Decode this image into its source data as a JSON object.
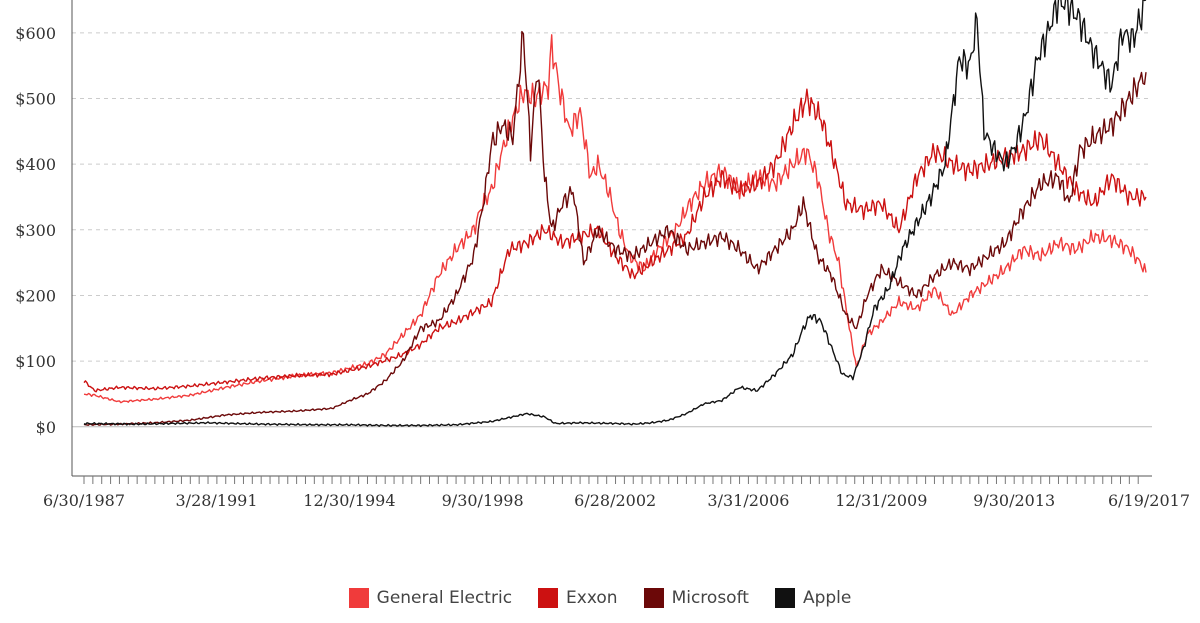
{
  "chart_data": {
    "type": "line",
    "title": "",
    "xlabel": "",
    "ylabel": "",
    "ylim": [
      -75,
      650
    ],
    "y_ticks": [
      0,
      100,
      200,
      300,
      400,
      500,
      600
    ],
    "y_tick_labels": [
      "$0",
      "$100",
      "$200",
      "$300",
      "$400",
      "$500",
      "$600"
    ],
    "x_tick_labels": [
      "6/30/1987",
      "3/28/1991",
      "12/30/1994",
      "9/30/1998",
      "6/28/2002",
      "3/31/2006",
      "12/31/2009",
      "9/30/2013",
      "6/19/2017"
    ],
    "x_tick_years": [
      1987.5,
      1991.24,
      1994.99,
      1998.75,
      2002.49,
      2006.25,
      2010.0,
      2013.75,
      2017.47
    ],
    "x_range": [
      1987.5,
      2017.47
    ],
    "grid": true,
    "legend_position": "bottom",
    "series": [
      {
        "name": "General Electric",
        "color": "#f03b3b",
        "points": [
          [
            1987.5,
            50
          ],
          [
            1987.8,
            48
          ],
          [
            1988.5,
            38
          ],
          [
            1989.5,
            42
          ],
          [
            1990.5,
            48
          ],
          [
            1991.5,
            60
          ],
          [
            1992.5,
            70
          ],
          [
            1993.5,
            78
          ],
          [
            1994.5,
            82
          ],
          [
            1995.5,
            96
          ],
          [
            1996.0,
            110
          ],
          [
            1996.5,
            140
          ],
          [
            1997.0,
            170
          ],
          [
            1997.5,
            230
          ],
          [
            1998.0,
            270
          ],
          [
            1998.5,
            300
          ],
          [
            1998.75,
            340
          ],
          [
            1999.0,
            360
          ],
          [
            1999.3,
            420
          ],
          [
            1999.6,
            470
          ],
          [
            1999.9,
            510
          ],
          [
            2000.2,
            500
          ],
          [
            2000.6,
            520
          ],
          [
            2000.7,
            580
          ],
          [
            2000.9,
            520
          ],
          [
            2001.2,
            450
          ],
          [
            2001.5,
            480
          ],
          [
            2001.8,
            380
          ],
          [
            2002.0,
            400
          ],
          [
            2002.3,
            360
          ],
          [
            2002.6,
            300
          ],
          [
            2002.9,
            260
          ],
          [
            2003.3,
            240
          ],
          [
            2003.7,
            270
          ],
          [
            2004.2,
            300
          ],
          [
            2004.6,
            340
          ],
          [
            2005.0,
            370
          ],
          [
            2005.5,
            390
          ],
          [
            2006.0,
            360
          ],
          [
            2006.5,
            380
          ],
          [
            2007.0,
            370
          ],
          [
            2007.5,
            400
          ],
          [
            2007.9,
            420
          ],
          [
            2008.2,
            380
          ],
          [
            2008.5,
            300
          ],
          [
            2008.8,
            250
          ],
          [
            2009.1,
            150
          ],
          [
            2009.3,
            90
          ],
          [
            2009.6,
            140
          ],
          [
            2010.0,
            160
          ],
          [
            2010.5,
            190
          ],
          [
            2011.0,
            180
          ],
          [
            2011.5,
            210
          ],
          [
            2012.0,
            170
          ],
          [
            2012.5,
            200
          ],
          [
            2013.0,
            220
          ],
          [
            2013.5,
            240
          ],
          [
            2014.0,
            270
          ],
          [
            2014.5,
            260
          ],
          [
            2015.0,
            280
          ],
          [
            2015.5,
            270
          ],
          [
            2016.0,
            290
          ],
          [
            2016.5,
            285
          ],
          [
            2017.0,
            270
          ],
          [
            2017.3,
            250
          ],
          [
            2017.47,
            235
          ]
        ]
      },
      {
        "name": "Exxon",
        "color": "#cc1111",
        "points": [
          [
            1987.5,
            70
          ],
          [
            1987.8,
            55
          ],
          [
            1988.5,
            60
          ],
          [
            1989.5,
            58
          ],
          [
            1990.5,
            62
          ],
          [
            1991.5,
            68
          ],
          [
            1992.5,
            74
          ],
          [
            1993.5,
            78
          ],
          [
            1994.5,
            80
          ],
          [
            1995.5,
            92
          ],
          [
            1996.5,
            110
          ],
          [
            1997.0,
            125
          ],
          [
            1997.5,
            150
          ],
          [
            1998.0,
            160
          ],
          [
            1998.5,
            175
          ],
          [
            1999.0,
            190
          ],
          [
            1999.5,
            270
          ],
          [
            2000.0,
            280
          ],
          [
            2000.5,
            300
          ],
          [
            2001.0,
            280
          ],
          [
            2001.5,
            290
          ],
          [
            2002.0,
            300
          ],
          [
            2002.5,
            260
          ],
          [
            2003.0,
            230
          ],
          [
            2003.5,
            250
          ],
          [
            2004.0,
            270
          ],
          [
            2004.5,
            290
          ],
          [
            2005.0,
            350
          ],
          [
            2005.5,
            380
          ],
          [
            2006.0,
            360
          ],
          [
            2006.5,
            370
          ],
          [
            2007.0,
            400
          ],
          [
            2007.5,
            460
          ],
          [
            2007.9,
            500
          ],
          [
            2008.3,
            470
          ],
          [
            2008.7,
            400
          ],
          [
            2009.0,
            340
          ],
          [
            2009.5,
            330
          ],
          [
            2010.0,
            340
          ],
          [
            2010.5,
            300
          ],
          [
            2011.0,
            380
          ],
          [
            2011.5,
            420
          ],
          [
            2012.0,
            400
          ],
          [
            2012.5,
            390
          ],
          [
            2013.0,
            400
          ],
          [
            2013.5,
            410
          ],
          [
            2014.0,
            420
          ],
          [
            2014.5,
            440
          ],
          [
            2015.0,
            400
          ],
          [
            2015.5,
            360
          ],
          [
            2016.0,
            340
          ],
          [
            2016.5,
            380
          ],
          [
            2017.0,
            350
          ],
          [
            2017.47,
            350
          ]
        ]
      },
      {
        "name": "Microsoft",
        "color": "#6b0808",
        "points": [
          [
            1987.5,
            3
          ],
          [
            1988.5,
            4
          ],
          [
            1989.5,
            6
          ],
          [
            1990.5,
            10
          ],
          [
            1991.5,
            18
          ],
          [
            1992.5,
            22
          ],
          [
            1993.5,
            24
          ],
          [
            1994.5,
            28
          ],
          [
            1995.0,
            40
          ],
          [
            1995.5,
            50
          ],
          [
            1996.0,
            70
          ],
          [
            1996.5,
            100
          ],
          [
            1997.0,
            150
          ],
          [
            1997.5,
            160
          ],
          [
            1998.0,
            200
          ],
          [
            1998.5,
            260
          ],
          [
            1998.8,
            350
          ],
          [
            1999.0,
            430
          ],
          [
            1999.3,
            460
          ],
          [
            1999.6,
            440
          ],
          [
            1999.9,
            600
          ],
          [
            2000.1,
            420
          ],
          [
            2000.3,
            550
          ],
          [
            2000.5,
            380
          ],
          [
            2000.7,
            300
          ],
          [
            2001.0,
            340
          ],
          [
            2001.3,
            360
          ],
          [
            2001.6,
            250
          ],
          [
            2002.0,
            300
          ],
          [
            2002.5,
            270
          ],
          [
            2003.0,
            260
          ],
          [
            2003.5,
            280
          ],
          [
            2004.0,
            300
          ],
          [
            2004.5,
            270
          ],
          [
            2005.0,
            280
          ],
          [
            2005.5,
            290
          ],
          [
            2006.0,
            270
          ],
          [
            2006.5,
            240
          ],
          [
            2007.0,
            270
          ],
          [
            2007.5,
            300
          ],
          [
            2007.8,
            340
          ],
          [
            2008.2,
            260
          ],
          [
            2008.6,
            230
          ],
          [
            2009.0,
            170
          ],
          [
            2009.3,
            150
          ],
          [
            2009.6,
            200
          ],
          [
            2010.0,
            240
          ],
          [
            2010.5,
            220
          ],
          [
            2011.0,
            200
          ],
          [
            2011.5,
            230
          ],
          [
            2012.0,
            250
          ],
          [
            2012.5,
            240
          ],
          [
            2013.0,
            260
          ],
          [
            2013.5,
            280
          ],
          [
            2014.0,
            330
          ],
          [
            2014.5,
            370
          ],
          [
            2015.0,
            380
          ],
          [
            2015.3,
            340
          ],
          [
            2015.6,
            420
          ],
          [
            2016.0,
            440
          ],
          [
            2016.5,
            460
          ],
          [
            2017.0,
            500
          ],
          [
            2017.47,
            540
          ]
        ]
      },
      {
        "name": "Apple",
        "color": "#111111",
        "points": [
          [
            1987.5,
            5
          ],
          [
            1989.0,
            4
          ],
          [
            1991.0,
            6
          ],
          [
            1992.5,
            4
          ],
          [
            1994.0,
            3
          ],
          [
            1995.0,
            3
          ],
          [
            1996.0,
            2
          ],
          [
            1997.0,
            2
          ],
          [
            1998.0,
            3
          ],
          [
            1999.0,
            8
          ],
          [
            1999.5,
            14
          ],
          [
            2000.0,
            20
          ],
          [
            2000.5,
            15
          ],
          [
            2000.8,
            5
          ],
          [
            2001.5,
            6
          ],
          [
            2002.5,
            5
          ],
          [
            2003.0,
            4
          ],
          [
            2003.5,
            6
          ],
          [
            2004.0,
            10
          ],
          [
            2004.5,
            20
          ],
          [
            2005.0,
            35
          ],
          [
            2005.5,
            40
          ],
          [
            2006.0,
            60
          ],
          [
            2006.5,
            55
          ],
          [
            2007.0,
            80
          ],
          [
            2007.5,
            110
          ],
          [
            2007.8,
            150
          ],
          [
            2008.0,
            170
          ],
          [
            2008.3,
            160
          ],
          [
            2008.6,
            120
          ],
          [
            2008.9,
            80
          ],
          [
            2009.2,
            75
          ],
          [
            2009.5,
            120
          ],
          [
            2009.8,
            180
          ],
          [
            2010.2,
            210
          ],
          [
            2010.6,
            270
          ],
          [
            2011.0,
            310
          ],
          [
            2011.4,
            350
          ],
          [
            2011.8,
            400
          ],
          [
            2012.2,
            560
          ],
          [
            2012.5,
            550
          ],
          [
            2012.7,
            620
          ],
          [
            2012.9,
            450
          ],
          [
            2013.2,
            420
          ],
          [
            2013.5,
            400
          ],
          [
            2013.8,
            430
          ],
          [
            2014.1,
            480
          ],
          [
            2014.4,
            560
          ],
          [
            2014.7,
            600
          ],
          [
            2015.0,
            650
          ],
          [
            2015.3,
            640
          ],
          [
            2015.6,
            620
          ],
          [
            2015.9,
            580
          ],
          [
            2016.2,
            550
          ],
          [
            2016.5,
            520
          ],
          [
            2016.8,
            600
          ],
          [
            2017.1,
            590
          ],
          [
            2017.3,
            620
          ],
          [
            2017.47,
            650
          ]
        ]
      }
    ]
  }
}
